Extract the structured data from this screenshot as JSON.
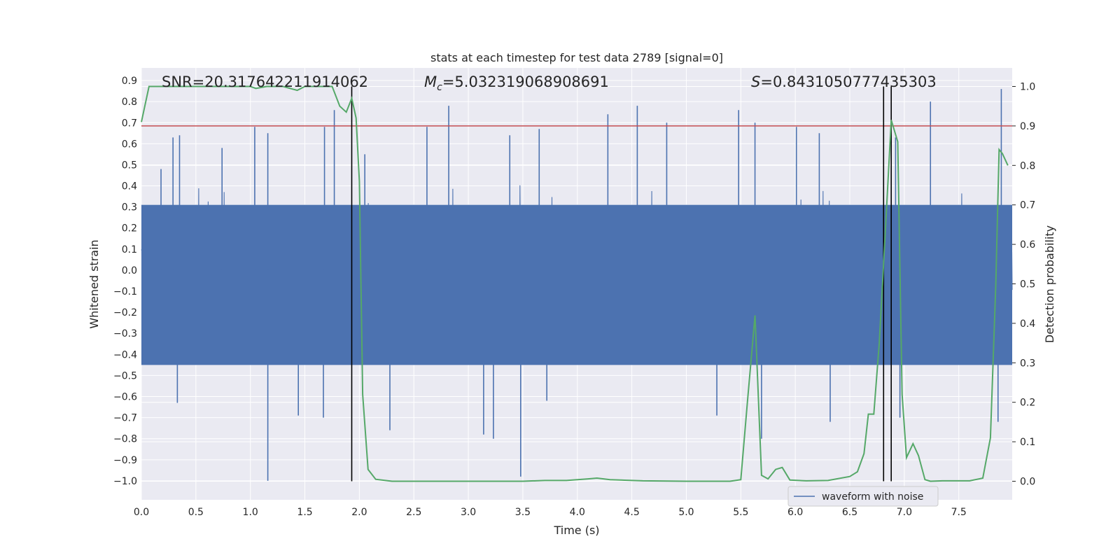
{
  "chart_data": {
    "type": "line",
    "title": "stats at each timestep for test data 2789 [signal=0]",
    "xlabel": "Time (s)",
    "ylabel": "Whitened strain",
    "y2label": "Detection probability",
    "xlim": [
      0.0,
      7.99
    ],
    "ylim": [
      -1.09,
      0.96
    ],
    "y2lim": [
      -0.047,
      1.047
    ],
    "x_ticks": [
      "0.0",
      "0.5",
      "1.0",
      "1.5",
      "2.0",
      "2.5",
      "3.0",
      "3.5",
      "4.0",
      "4.5",
      "5.0",
      "5.5",
      "6.0",
      "6.5",
      "7.0",
      "7.5"
    ],
    "y_ticks": [
      "0.9",
      "0.8",
      "0.7",
      "0.6",
      "0.5",
      "0.4",
      "0.3",
      "0.2",
      "0.1",
      "0.0",
      "−0.1",
      "−0.2",
      "−0.3",
      "−0.4",
      "−0.5",
      "−0.6",
      "−0.7",
      "−0.8",
      "−0.9",
      "−1.0"
    ],
    "y2_ticks": [
      "1.0",
      "0.9",
      "0.8",
      "0.7",
      "0.6",
      "0.5",
      "0.4",
      "0.3",
      "0.2",
      "0.1",
      "0.0"
    ],
    "grid": true,
    "legend_position": "lower-right",
    "annotations": {
      "snr": "SNR=20.317642211914062",
      "mc_symbol": "M",
      "mc_sub": "c",
      "mc_value": "=5.032319068908691",
      "s_symbol": "S",
      "s_value": "=0.8431050777435303"
    },
    "threshold_line": {
      "y2": 0.9,
      "color": "#c44e52"
    },
    "vertical_lines": [
      1.93,
      6.81,
      6.88
    ],
    "series": [
      {
        "name": "waveform with noise",
        "kind": "noise",
        "color": "#4c72b0",
        "spikes_up": [
          {
            "x": 0.18,
            "y": 0.48
          },
          {
            "x": 0.29,
            "y": 0.63
          },
          {
            "x": 0.35,
            "y": 0.64
          },
          {
            "x": 0.74,
            "y": 0.58
          },
          {
            "x": 1.04,
            "y": 0.68
          },
          {
            "x": 1.16,
            "y": 0.65
          },
          {
            "x": 1.68,
            "y": 0.68
          },
          {
            "x": 1.77,
            "y": 0.76
          },
          {
            "x": 2.05,
            "y": 0.55
          },
          {
            "x": 2.62,
            "y": 0.68
          },
          {
            "x": 2.82,
            "y": 0.78
          },
          {
            "x": 3.38,
            "y": 0.64
          },
          {
            "x": 3.65,
            "y": 0.67
          },
          {
            "x": 4.28,
            "y": 0.74
          },
          {
            "x": 4.55,
            "y": 0.78
          },
          {
            "x": 4.82,
            "y": 0.7
          },
          {
            "x": 5.48,
            "y": 0.76
          },
          {
            "x": 5.63,
            "y": 0.7
          },
          {
            "x": 6.01,
            "y": 0.68
          },
          {
            "x": 6.22,
            "y": 0.65
          },
          {
            "x": 6.92,
            "y": 0.63
          },
          {
            "x": 7.24,
            "y": 0.8
          },
          {
            "x": 7.89,
            "y": 0.86
          }
        ],
        "spikes_down": [
          {
            "x": 0.33,
            "y": -0.63
          },
          {
            "x": 1.16,
            "y": -1.0
          },
          {
            "x": 1.44,
            "y": -0.69
          },
          {
            "x": 1.67,
            "y": -0.7
          },
          {
            "x": 2.28,
            "y": -0.76
          },
          {
            "x": 3.14,
            "y": -0.78
          },
          {
            "x": 3.23,
            "y": -0.8
          },
          {
            "x": 3.48,
            "y": -0.98
          },
          {
            "x": 3.72,
            "y": -0.62
          },
          {
            "x": 5.28,
            "y": -0.69
          },
          {
            "x": 5.69,
            "y": -0.8
          },
          {
            "x": 6.32,
            "y": -0.72
          },
          {
            "x": 6.96,
            "y": -0.7
          },
          {
            "x": 7.86,
            "y": -0.72
          }
        ]
      },
      {
        "name": "",
        "kind": "probability",
        "axis": "right",
        "color": "#55a868",
        "x": [
          0.0,
          0.07,
          0.2,
          0.4,
          0.6,
          0.8,
          1.0,
          1.05,
          1.15,
          1.3,
          1.43,
          1.5,
          1.65,
          1.75,
          1.82,
          1.88,
          1.93,
          1.97,
          2.0,
          2.03,
          2.08,
          2.15,
          2.3,
          2.6,
          3.0,
          3.5,
          3.7,
          3.9,
          4.1,
          4.18,
          4.3,
          4.6,
          5.0,
          5.4,
          5.5,
          5.56,
          5.63,
          5.69,
          5.75,
          5.82,
          5.88,
          5.95,
          6.1,
          6.3,
          6.5,
          6.57,
          6.63,
          6.67,
          6.72,
          6.77,
          6.82,
          6.88,
          6.94,
          6.98,
          7.02,
          7.08,
          7.13,
          7.19,
          7.24,
          7.35,
          7.6,
          7.72,
          7.79,
          7.84,
          7.87,
          7.9,
          7.95
        ],
        "values": [
          0.91,
          1.0,
          1.0,
          1.0,
          1.0,
          1.0,
          1.0,
          0.995,
          1.0,
          1.0,
          0.99,
          1.0,
          1.0,
          1.0,
          0.95,
          0.935,
          0.97,
          0.92,
          0.76,
          0.22,
          0.03,
          0.005,
          0.0,
          0.0,
          0.0,
          0.0,
          0.002,
          0.002,
          0.006,
          0.008,
          0.004,
          0.001,
          0.0,
          0.0,
          0.004,
          0.2,
          0.42,
          0.015,
          0.006,
          0.03,
          0.035,
          0.003,
          0.001,
          0.002,
          0.012,
          0.024,
          0.07,
          0.17,
          0.17,
          0.35,
          0.6,
          0.915,
          0.86,
          0.22,
          0.06,
          0.095,
          0.065,
          0.004,
          0.0,
          0.001,
          0.001,
          0.008,
          0.11,
          0.5,
          0.84,
          0.83,
          0.8
        ]
      }
    ]
  }
}
